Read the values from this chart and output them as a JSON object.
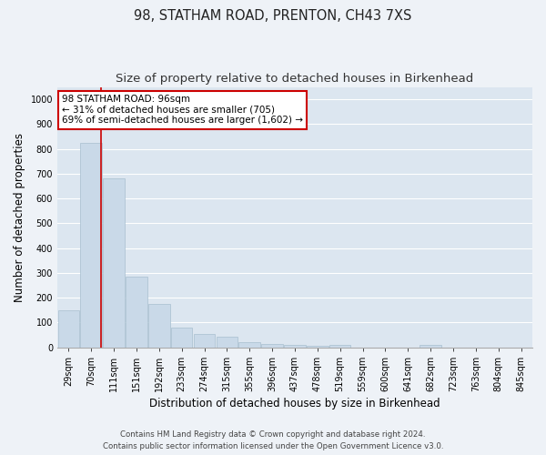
{
  "title": "98, STATHAM ROAD, PRENTON, CH43 7XS",
  "subtitle": "Size of property relative to detached houses in Birkenhead",
  "xlabel": "Distribution of detached houses by size in Birkenhead",
  "ylabel": "Number of detached properties",
  "categories": [
    "29sqm",
    "70sqm",
    "111sqm",
    "151sqm",
    "192sqm",
    "233sqm",
    "274sqm",
    "315sqm",
    "355sqm",
    "396sqm",
    "437sqm",
    "478sqm",
    "519sqm",
    "559sqm",
    "600sqm",
    "641sqm",
    "682sqm",
    "723sqm",
    "763sqm",
    "804sqm",
    "845sqm"
  ],
  "values": [
    150,
    825,
    680,
    285,
    175,
    78,
    55,
    42,
    22,
    15,
    8,
    7,
    8,
    0,
    0,
    0,
    10,
    0,
    0,
    0,
    0
  ],
  "bar_color": "#c9d9e8",
  "bar_edge_color": "#a8bfcf",
  "vline_x": 1.45,
  "vline_color": "#cc0000",
  "annotation_text": "98 STATHAM ROAD: 96sqm\n← 31% of detached houses are smaller (705)\n69% of semi-detached houses are larger (1,602) →",
  "annotation_box_facecolor": "#ffffff",
  "annotation_box_edgecolor": "#cc0000",
  "ylim": [
    0,
    1050
  ],
  "yticks": [
    0,
    100,
    200,
    300,
    400,
    500,
    600,
    700,
    800,
    900,
    1000
  ],
  "footer_line1": "Contains HM Land Registry data © Crown copyright and database right 2024.",
  "footer_line2": "Contains public sector information licensed under the Open Government Licence v3.0.",
  "bg_color": "#eef2f7",
  "plot_bg_color": "#dce6f0",
  "grid_color": "#ffffff",
  "title_fontsize": 10.5,
  "subtitle_fontsize": 9.5,
  "tick_fontsize": 7,
  "ylabel_fontsize": 8.5,
  "xlabel_fontsize": 8.5,
  "annotation_fontsize": 7.5,
  "footer_fontsize": 6.2
}
